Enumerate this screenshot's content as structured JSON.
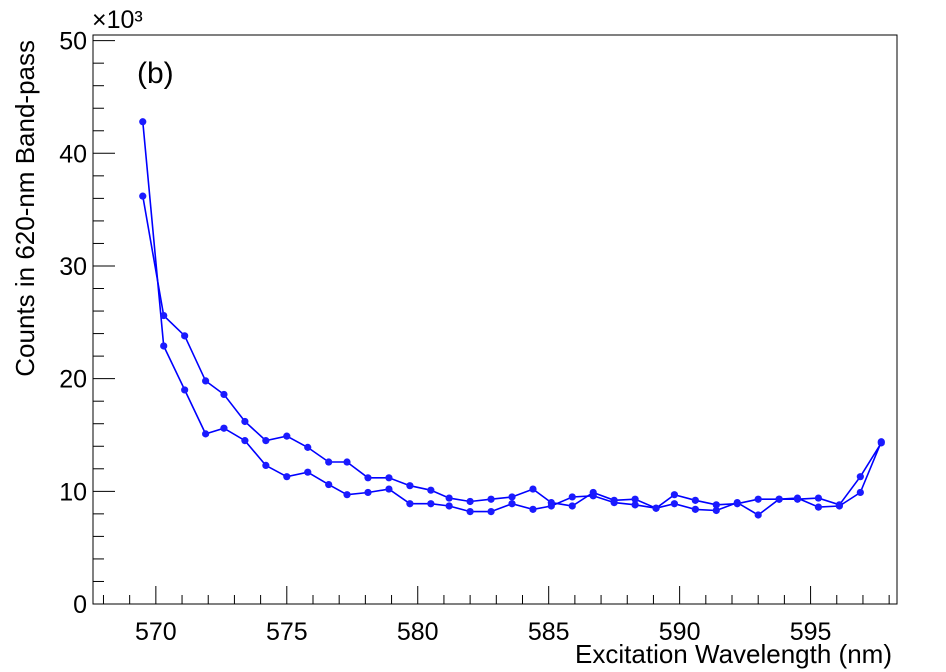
{
  "chart_data": {
    "type": "line",
    "panel_label": "(b)",
    "xlabel": "Excitation Wavelength (nm)",
    "ylabel": "Counts in 620-nm Band-pass",
    "y_exponent_label": "×10³",
    "xlim": [
      567.6,
      598.3
    ],
    "ylim": [
      0,
      50.5
    ],
    "x_major_ticks": [
      570,
      575,
      580,
      585,
      590,
      595
    ],
    "x_tick_labels": [
      "570",
      "575",
      "580",
      "585",
      "590",
      "595"
    ],
    "y_major_ticks": [
      0,
      10,
      20,
      30,
      40,
      50
    ],
    "y_tick_labels": [
      "0",
      "10",
      "20",
      "30",
      "40",
      "50"
    ],
    "grid": false,
    "legend": "none",
    "line_color": "#0000ff",
    "marker_color": "#1a1aff",
    "series": [
      {
        "x": [
          569.5,
          570.3,
          571.1,
          571.9,
          572.6,
          573.4,
          574.2,
          575.0,
          575.8,
          576.6,
          577.3,
          578.1,
          578.9,
          579.7,
          580.5,
          581.2,
          582.0,
          582.8,
          583.6,
          584.4,
          585.1,
          585.9,
          586.7,
          587.5,
          588.3,
          589.1,
          589.8,
          590.6,
          591.4,
          592.2,
          593.0,
          593.8,
          594.5,
          595.3,
          596.1,
          596.9,
          597.7
        ],
        "y": [
          42.8,
          22.9,
          19.0,
          15.1,
          15.6,
          14.5,
          12.3,
          11.3,
          11.7,
          10.6,
          9.7,
          9.9,
          10.2,
          8.9,
          8.9,
          8.7,
          8.2,
          8.2,
          8.9,
          8.4,
          8.7,
          9.5,
          9.6,
          9.0,
          8.8,
          8.5,
          8.9,
          8.4,
          8.3,
          9.0,
          7.9,
          9.3,
          9.3,
          9.4,
          8.8,
          11.3,
          14.3
        ]
      },
      {
        "x": [
          569.5,
          570.3,
          571.1,
          571.9,
          572.6,
          573.4,
          574.2,
          575.0,
          575.8,
          576.6,
          577.3,
          578.1,
          578.9,
          579.7,
          580.5,
          581.2,
          582.0,
          582.8,
          583.6,
          584.4,
          585.1,
          585.9,
          586.7,
          587.5,
          588.3,
          589.1,
          589.8,
          590.6,
          591.4,
          592.2,
          593.0,
          593.8,
          594.5,
          595.3,
          596.1,
          596.9,
          597.7
        ],
        "y": [
          36.2,
          25.6,
          23.8,
          19.8,
          18.6,
          16.2,
          14.5,
          14.9,
          13.9,
          12.6,
          12.6,
          11.2,
          11.2,
          10.5,
          10.1,
          9.4,
          9.1,
          9.3,
          9.5,
          10.2,
          9.0,
          8.7,
          9.9,
          9.2,
          9.3,
          8.5,
          9.7,
          9.2,
          8.8,
          8.9,
          9.3,
          9.3,
          9.4,
          8.6,
          8.7,
          9.9,
          14.4
        ]
      }
    ]
  }
}
